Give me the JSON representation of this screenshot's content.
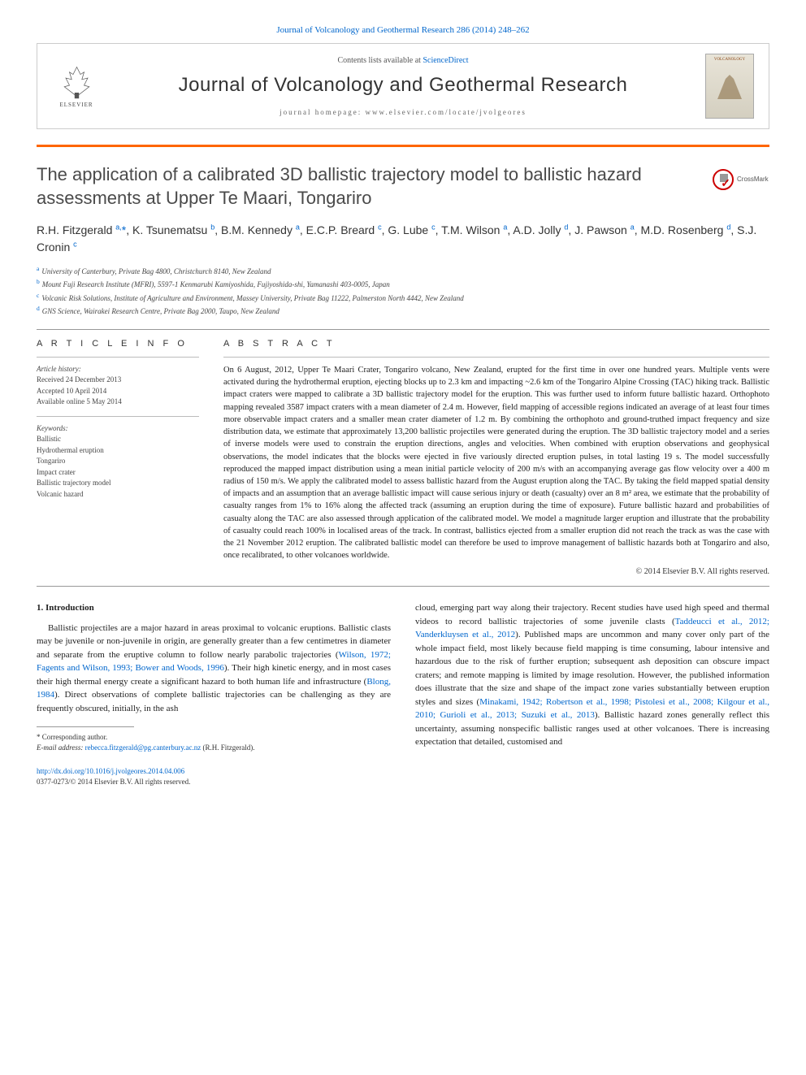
{
  "header": {
    "citation_link": "Journal of Volcanology and Geothermal Research 286 (2014) 248–262",
    "contents_prefix": "Contents lists available at ",
    "contents_link": "ScienceDirect",
    "journal_name": "Journal of Volcanology and Geothermal Research",
    "homepage_prefix": "journal homepage: ",
    "homepage_url": "www.elsevier.com/locate/jvolgeores",
    "elsevier_label": "ELSEVIER",
    "cover_label": "VOLCANOLOGY"
  },
  "crossmark": {
    "label": "CrossMark"
  },
  "title": "The application of a calibrated 3D ballistic trajectory model to ballistic hazard assessments at Upper Te Maari, Tongariro",
  "authors_html": "R.H. Fitzgerald <sup>a,</sup><span class='star'>*</span>, K. Tsunematsu <sup>b</sup>, B.M. Kennedy <sup>a</sup>, E.C.P. Breard <sup>c</sup>, G. Lube <sup>c</sup>, T.M. Wilson <sup>a</sup>, A.D. Jolly <sup>d</sup>, J. Pawson <sup>a</sup>, M.D. Rosenberg <sup>d</sup>, S.J. Cronin <sup>c</sup>",
  "affiliations": [
    {
      "sup": "a",
      "text": "University of Canterbury, Private Bag 4800, Christchurch 8140, New Zealand"
    },
    {
      "sup": "b",
      "text": "Mount Fuji Research Institute (MFRI), 5597-1 Kenmarubi Kamiyoshida, Fujiyoshida-shi, Yamanashi 403-0005, Japan"
    },
    {
      "sup": "c",
      "text": "Volcanic Risk Solutions, Institute of Agriculture and Environment, Massey University, Private Bag 11222, Palmerston North 4442, New Zealand"
    },
    {
      "sup": "d",
      "text": "GNS Science, Wairakei Research Centre, Private Bag 2000, Taupo, New Zealand"
    }
  ],
  "article_info": {
    "heading": "A R T I C L E   I N F O",
    "history_label": "Article history:",
    "received": "Received 24 December 2013",
    "accepted": "Accepted 10 April 2014",
    "online": "Available online 5 May 2014",
    "keywords_label": "Keywords:",
    "keywords": [
      "Ballistic",
      "Hydrothermal eruption",
      "Tongariro",
      "Impact crater",
      "Ballistic trajectory model",
      "Volcanic hazard"
    ]
  },
  "abstract": {
    "heading": "A B S T R A C T",
    "text": "On 6 August, 2012, Upper Te Maari Crater, Tongariro volcano, New Zealand, erupted for the first time in over one hundred years. Multiple vents were activated during the hydrothermal eruption, ejecting blocks up to 2.3 km and impacting ~2.6 km of the Tongariro Alpine Crossing (TAC) hiking track. Ballistic impact craters were mapped to calibrate a 3D ballistic trajectory model for the eruption. This was further used to inform future ballistic hazard. Orthophoto mapping revealed 3587 impact craters with a mean diameter of 2.4 m. However, field mapping of accessible regions indicated an average of at least four times more observable impact craters and a smaller mean crater diameter of 1.2 m. By combining the orthophoto and ground-truthed impact frequency and size distribution data, we estimate that approximately 13,200 ballistic projectiles were generated during the eruption. The 3D ballistic trajectory model and a series of inverse models were used to constrain the eruption directions, angles and velocities. When combined with eruption observations and geophysical observations, the model indicates that the blocks were ejected in five variously directed eruption pulses, in total lasting 19 s. The model successfully reproduced the mapped impact distribution using a mean initial particle velocity of 200 m/s with an accompanying average gas flow velocity over a 400 m radius of 150 m/s. We apply the calibrated model to assess ballistic hazard from the August eruption along the TAC. By taking the field mapped spatial density of impacts and an assumption that an average ballistic impact will cause serious injury or death (casualty) over an 8 m² area, we estimate that the probability of casualty ranges from 1% to 16% along the affected track (assuming an eruption during the time of exposure). Future ballistic hazard and probabilities of casualty along the TAC are also assessed through application of the calibrated model. We model a magnitude larger eruption and illustrate that the probability of casualty could reach 100% in localised areas of the track. In contrast, ballistics ejected from a smaller eruption did not reach the track as was the case with the 21 November 2012 eruption. The calibrated ballistic model can therefore be used to improve management of ballistic hazards both at Tongariro and also, once recalibrated, to other volcanoes worldwide.",
    "copyright": "© 2014 Elsevier B.V. All rights reserved."
  },
  "body": {
    "section_heading": "1. Introduction",
    "col1_p1_pre": "Ballistic projectiles are a major hazard in areas proximal to volcanic eruptions. Ballistic clasts may be juvenile or non-juvenile in origin, are generally greater than a few centimetres in diameter and separate from the eruptive column to follow nearly parabolic trajectories (",
    "col1_p1_link1": "Wilson, 1972; Fagents and Wilson, 1993; Bower and Woods, 1996",
    "col1_p1_mid": "). Their high kinetic energy, and in most cases their high thermal energy create a significant hazard to both human life and infrastructure (",
    "col1_p1_link2": "Blong, 1984",
    "col1_p1_post": "). Direct observations of complete ballistic trajectories can be challenging as they are frequently obscured, initially, in the ash",
    "col2_p1_pre": "cloud, emerging part way along their trajectory. Recent studies have used high speed and thermal videos to record ballistic trajectories of some juvenile clasts (",
    "col2_p1_link1": "Taddeucci et al., 2012; Vanderkluysen et al., 2012",
    "col2_p1_mid": "). Published maps are uncommon and many cover only part of the whole impact field, most likely because field mapping is time consuming, labour intensive and hazardous due to the risk of further eruption; subsequent ash deposition can obscure impact craters; and remote mapping is limited by image resolution. However, the published information does illustrate that the size and shape of the impact zone varies substantially between eruption styles and sizes (",
    "col2_p1_link2": "Minakami, 1942; Robertson et al., 1998; Pistolesi et al., 2008; Kilgour et al., 2010; Gurioli et al., 2013; Suzuki et al., 2013",
    "col2_p1_post": "). Ballistic hazard zones generally reflect this uncertainty, assuming nonspecific ballistic ranges used at other volcanoes. There is increasing expectation that detailed, customised and"
  },
  "footnote": {
    "corr": "* Corresponding author.",
    "email_label": "E-mail address: ",
    "email": "rebecca.fitzgerald@pg.canterbury.ac.nz",
    "email_suffix": " (R.H. Fitzgerald)."
  },
  "doi": {
    "url": "http://dx.doi.org/10.1016/j.jvolgeores.2014.04.006",
    "issn_line": "0377-0273/© 2014 Elsevier B.V. All rights reserved."
  },
  "colors": {
    "orange": "#ff6600",
    "link": "#0066cc",
    "text": "#222222"
  }
}
